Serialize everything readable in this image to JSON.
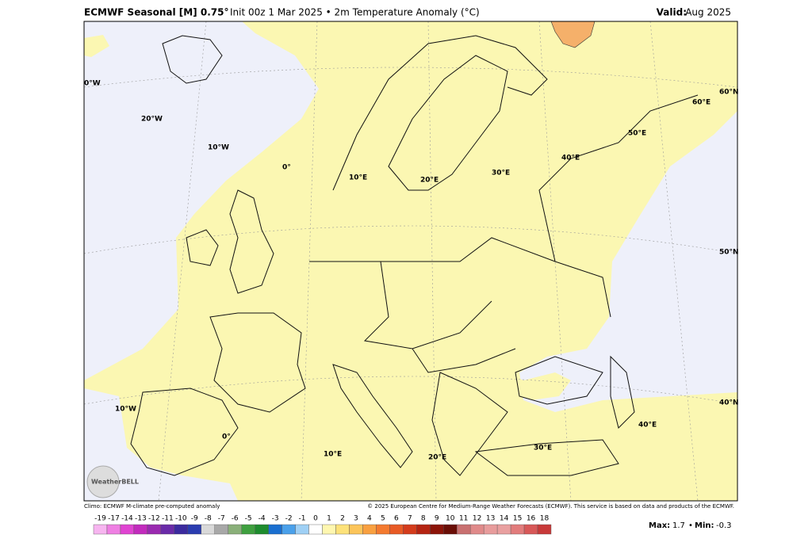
{
  "header": {
    "title": "ECMWF Seasonal [M] 0.75°",
    "subtitle": "Init 00z 1 Mar 2025 • 2m Temperature Anomaly (°C)",
    "valid_label": "Valid:",
    "valid": "Aug 2025"
  },
  "map": {
    "graticule_labels": [
      "0°W",
      "20°W",
      "10°W",
      "0°",
      "10°E",
      "20°E",
      "30°E",
      "40°E",
      "50°E",
      "60°E",
      "60°N",
      "50°N",
      "40°N",
      "40°E",
      "10°W",
      "0°",
      "10°E",
      "20°E",
      "30°E"
    ],
    "logo": "WeatherBELL"
  },
  "footer": {
    "left": "Climo: ECMWF M-climate pre-computed anomaly",
    "right": "© 2025 European Centre for Medium-Range Weather Forecasts (ECMWF). This service is based on data and products of the ECMWF.",
    "max_label": "Max:",
    "max": 1.7,
    "min_label": "Min:",
    "min": -0.3
  },
  "colorbar": {
    "labels": [
      -19,
      -17,
      -14,
      -13,
      -12,
      -11,
      -10,
      -9,
      -8,
      -7,
      -6,
      -5,
      -4,
      -3,
      -2,
      -1,
      0,
      1,
      2,
      3,
      4,
      5,
      6,
      7,
      8,
      9,
      10,
      11,
      12,
      13,
      14,
      15,
      16,
      18
    ],
    "colors": [
      "#f7b5f0",
      "#ef7fe3",
      "#e044d2",
      "#c22bbd",
      "#9a2ab0",
      "#6a2aa8",
      "#3b2a9e",
      "#2a3cb0",
      "#d9d9d9",
      "#a8a8a8",
      "#8ab07a",
      "#3fa03f",
      "#1e8c2e",
      "#1a6fd0",
      "#4aa0ea",
      "#9fd0f5",
      "#ffffff",
      "#fff7b0",
      "#fde27a",
      "#fcc55a",
      "#f9a040",
      "#f47a2f",
      "#e85a25",
      "#d43c1c",
      "#b52412",
      "#8c1409",
      "#6a0e06",
      "#c97070",
      "#e08a8a",
      "#e89c9c",
      "#e9a0a0",
      "#e27c7c",
      "#d85858",
      "#c83a3a"
    ]
  }
}
